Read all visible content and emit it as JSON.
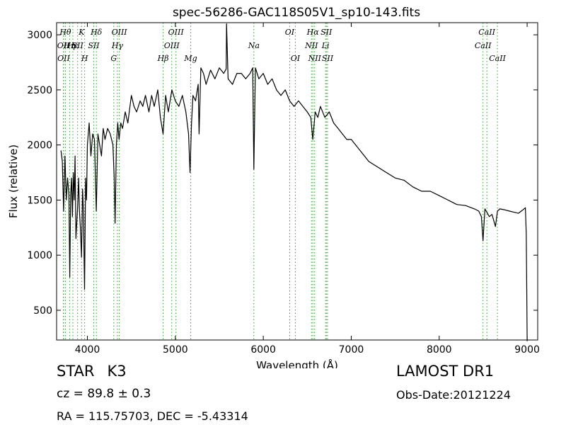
{
  "chart_data": {
    "type": "line",
    "title": "spec-56286-GAC118S05V1_sp10-143.fits",
    "xlabel": "Wavelength (Å)",
    "ylabel": "Flux (relative)",
    "xlim": [
      3650,
      9120
    ],
    "ylim": [
      230,
      3110
    ],
    "xticks": [
      4000,
      5000,
      6000,
      7000,
      8000,
      9000
    ],
    "yticks": [
      500,
      1000,
      1500,
      2000,
      2500,
      3000
    ],
    "grid": false,
    "line_color": "#000000",
    "marker_color": "#2ca02c",
    "series": [
      {
        "x": [
          3700,
          3715,
          3730,
          3745,
          3760,
          3775,
          3790,
          3800,
          3810,
          3820,
          3830,
          3840,
          3850,
          3860,
          3870,
          3880,
          3890,
          3900,
          3910,
          3920,
          3933,
          3945,
          3955,
          3968,
          3980,
          3990,
          4000,
          4020,
          4040,
          4060,
          4080,
          4101,
          4120,
          4140,
          4160,
          4180,
          4200,
          4230,
          4260,
          4290,
          4305,
          4315,
          4330,
          4345,
          4360,
          4380,
          4400,
          4430,
          4460,
          4500,
          4530,
          4560,
          4600,
          4630,
          4660,
          4700,
          4730,
          4760,
          4800,
          4830,
          4861,
          4890,
          4920,
          4960,
          5000,
          5040,
          5080,
          5120,
          5150,
          5167,
          5184,
          5200,
          5230,
          5260,
          5270,
          5290,
          5320,
          5350,
          5400,
          5450,
          5500,
          5550,
          5578,
          5582,
          5600,
          5650,
          5700,
          5750,
          5800,
          5850,
          5880,
          5893,
          5910,
          5950,
          6000,
          6050,
          6100,
          6150,
          6200,
          6250,
          6300,
          6350,
          6400,
          6450,
          6500,
          6540,
          6563,
          6590,
          6620,
          6650,
          6700,
          6750,
          6800,
          6850,
          6900,
          6950,
          7000,
          7100,
          7200,
          7300,
          7400,
          7500,
          7600,
          7700,
          7800,
          7900,
          8000,
          8100,
          8200,
          8300,
          8400,
          8450,
          8480,
          8498,
          8520,
          8542,
          8570,
          8600,
          8640,
          8662,
          8690,
          8750,
          8800,
          8850,
          8900,
          8950,
          8980,
          8990,
          8995,
          9000
        ],
        "values": [
          1950,
          1850,
          1400,
          1900,
          1500,
          1700,
          1550,
          800,
          1550,
          1700,
          1350,
          1750,
          1500,
          1900,
          1150,
          1300,
          1450,
          1700,
          1400,
          1250,
          980,
          1600,
          1400,
          690,
          1700,
          1500,
          2000,
          2200,
          1900,
          2100,
          2050,
          1400,
          2100,
          2000,
          1900,
          2150,
          2050,
          2150,
          2100,
          2000,
          1700,
          1290,
          2000,
          2200,
          2050,
          2200,
          2150,
          2300,
          2200,
          2450,
          2350,
          2300,
          2400,
          2350,
          2450,
          2300,
          2450,
          2350,
          2500,
          2250,
          2100,
          2450,
          2300,
          2500,
          2400,
          2350,
          2450,
          2300,
          2100,
          1750,
          2200,
          2450,
          2400,
          2550,
          2100,
          2700,
          2650,
          2550,
          2680,
          2600,
          2700,
          2650,
          2690,
          3100,
          2600,
          2550,
          2650,
          2650,
          2600,
          2650,
          2700,
          1780,
          2700,
          2600,
          2650,
          2550,
          2600,
          2500,
          2450,
          2500,
          2400,
          2350,
          2400,
          2350,
          2300,
          2250,
          2050,
          2300,
          2250,
          2350,
          2250,
          2300,
          2200,
          2150,
          2100,
          2050,
          2050,
          1950,
          1850,
          1800,
          1750,
          1700,
          1680,
          1620,
          1580,
          1580,
          1540,
          1500,
          1460,
          1450,
          1420,
          1400,
          1350,
          1130,
          1420,
          1390,
          1350,
          1370,
          1260,
          1400,
          1420,
          1410,
          1400,
          1390,
          1380,
          1410,
          1430,
          1200,
          700,
          220
        ]
      }
    ],
    "line_markers": [
      {
        "w": 3727,
        "row": 1,
        "label": "OII"
      },
      {
        "w": 3730,
        "row": 2,
        "label": "OII"
      },
      {
        "w": 3750,
        "row": 0,
        "label": "Hθ"
      },
      {
        "w": 3798,
        "row": 1,
        "label": "Hη"
      },
      {
        "w": 3835,
        "row": 1,
        "label": "Hε"
      },
      {
        "w": 3889,
        "row": 1,
        "label": "SII"
      },
      {
        "w": 3934,
        "row": 0,
        "label": "K"
      },
      {
        "w": 3969,
        "row": 2,
        "label": "H"
      },
      {
        "w": 4072,
        "row": 1,
        "label": "SII"
      },
      {
        "w": 4102,
        "row": 0,
        "label": "Hδ"
      },
      {
        "w": 4300,
        "row": 2,
        "label": "G"
      },
      {
        "w": 4341,
        "row": 1,
        "label": "Hγ"
      },
      {
        "w": 4363,
        "row": 0,
        "label": "OIII"
      },
      {
        "w": 4861,
        "row": 2,
        "label": "Hβ"
      },
      {
        "w": 4959,
        "row": 1,
        "label": "OIII"
      },
      {
        "w": 5007,
        "row": 0,
        "label": "OIII"
      },
      {
        "w": 5175,
        "row": 2,
        "label": "Mg"
      },
      {
        "w": 5893,
        "row": 1,
        "label": "Na"
      },
      {
        "w": 6300,
        "row": 0,
        "label": "OI"
      },
      {
        "w": 6364,
        "row": 2,
        "label": "OI"
      },
      {
        "w": 6548,
        "row": 1,
        "label": "NII"
      },
      {
        "w": 6563,
        "row": 0,
        "label": "Hα"
      },
      {
        "w": 6584,
        "row": 2,
        "label": "NII"
      },
      {
        "w": 6708,
        "row": 1,
        "label": "Li"
      },
      {
        "w": 6717,
        "row": 0,
        "label": "SII"
      },
      {
        "w": 6731,
        "row": 2,
        "label": "SII"
      },
      {
        "w": 8498,
        "row": 1,
        "label": "CaII"
      },
      {
        "w": 8542,
        "row": 0,
        "label": "CaII"
      },
      {
        "w": 8662,
        "row": 2,
        "label": "CaII"
      }
    ]
  },
  "info": {
    "class_label": "STAR",
    "subclass": "K3",
    "redshift": "cz = 89.8 ± 0.3",
    "coordinates": "RA = 115.75703, DEC = -5.43314",
    "survey": "LAMOST DR1",
    "obs_date": "Obs-Date:20121224"
  }
}
